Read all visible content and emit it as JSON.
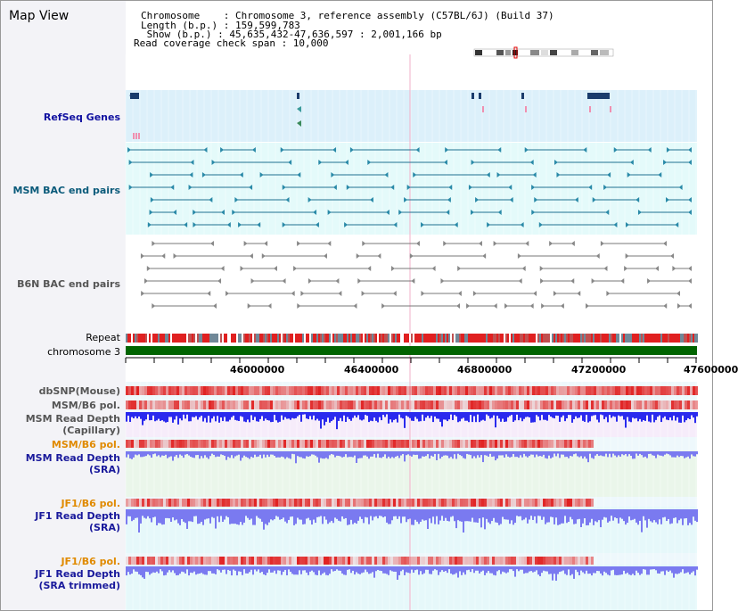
{
  "panel": {
    "title": "Map View"
  },
  "info": {
    "chromosome_line": "Chromosome    : Chromosome 3, reference assembly (C57BL/6J) (Build 37)",
    "length_line": "Length (b.p.) : 159,599,783",
    "show_line": " Show (b.p.) : 45,635,432-47,636,597 : 2,001,166 bp",
    "coverage_line": "Read coverage check span : 10,000"
  },
  "tracks": {
    "refseq": "RefSeq Genes",
    "msm_bac": "MSM BAC end pairs",
    "b6n_bac": "B6N BAC end pairs",
    "repeat": "Repeat",
    "chromosome": "chromosome 3",
    "dbsnp": "dbSNP(Mouse)",
    "msm_b6_pol_1": "MSM/B6 pol.",
    "msm_read_depth_cap": "MSM Read Depth\n(Capillary)",
    "msm_b6_pol_2": "MSM/B6 pol.",
    "msm_read_depth_sra": "MSM Read Depth\n(SRA)",
    "jf1_b6_pol_1": "JF1/B6 pol.",
    "jf1_read_depth_sra": "JF1 Read Depth\n(SRA)",
    "jf1_b6_pol_2": "JF1/B6 pol.",
    "jf1_read_depth_trim": "JF1 Read Depth\n(SRA trimmed)"
  },
  "axis": {
    "ticks": [
      "46000000",
      "46400000",
      "46800000",
      "47200000",
      "47600000"
    ]
  },
  "colors": {
    "refseq_band": "#dcf0fa",
    "bac_band": "#e4fafa",
    "gene": "#1a3c6c",
    "msm_pair": "#207090",
    "b6n_pair": "#777777",
    "chromosome": "#006400",
    "depth_blue": "#2a2aee",
    "depth_light": "#7a7af0",
    "pol_red": "#e02020"
  }
}
